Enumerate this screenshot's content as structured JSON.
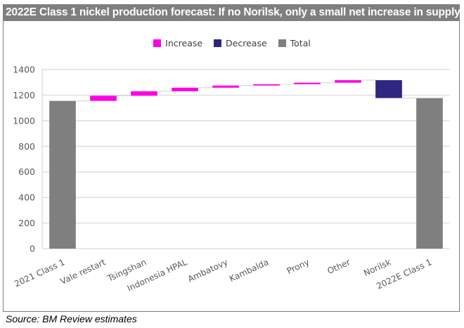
{
  "title": "2022E Class 1 nickel production forecast: If no Norilsk, only a small net increase in supply",
  "source": "Source: BM Review estimates",
  "colors": {
    "increase": "#ff00e6",
    "decrease": "#2e2680",
    "total": "#7f7f7f",
    "grid": "#d9d9d9",
    "connector": "#d9d9d9"
  },
  "legend": [
    {
      "label": "Increase",
      "key": "increase"
    },
    {
      "label": "Decrease",
      "key": "decrease"
    },
    {
      "label": "Total",
      "key": "total"
    }
  ],
  "chart_data": {
    "type": "bar",
    "subtype": "waterfall",
    "title": "2022E Class 1 nickel production forecast: If no Norilsk, only a small net increase in supply",
    "xlabel": "",
    "ylabel": "",
    "ylim": [
      0,
      1400
    ],
    "yticks": [
      0,
      200,
      400,
      600,
      800,
      1000,
      1200,
      1400
    ],
    "grid": true,
    "legend_position": "top-center",
    "categories": [
      "2021 Class 1",
      "Vale restart",
      "Tsingshan",
      "Indonesia HPAL",
      "Ambatovy",
      "Kambalda",
      "Prony",
      "Other",
      "Norilsk",
      "2022E Class 1"
    ],
    "steps": [
      {
        "category": "2021 Class 1",
        "kind": "total",
        "value": 1155
      },
      {
        "category": "Vale restart",
        "kind": "increase",
        "value": 40
      },
      {
        "category": "Tsingshan",
        "kind": "increase",
        "value": 35
      },
      {
        "category": "Indonesia HPAL",
        "kind": "increase",
        "value": 28
      },
      {
        "category": "Ambatovy",
        "kind": "increase",
        "value": 17
      },
      {
        "category": "Kambalda",
        "kind": "increase",
        "value": 10
      },
      {
        "category": "Prony",
        "kind": "increase",
        "value": 12
      },
      {
        "category": "Other",
        "kind": "increase",
        "value": 20
      },
      {
        "category": "Norilsk",
        "kind": "decrease",
        "value": -140
      },
      {
        "category": "2022E Class 1",
        "kind": "total",
        "value": 1177
      }
    ]
  }
}
